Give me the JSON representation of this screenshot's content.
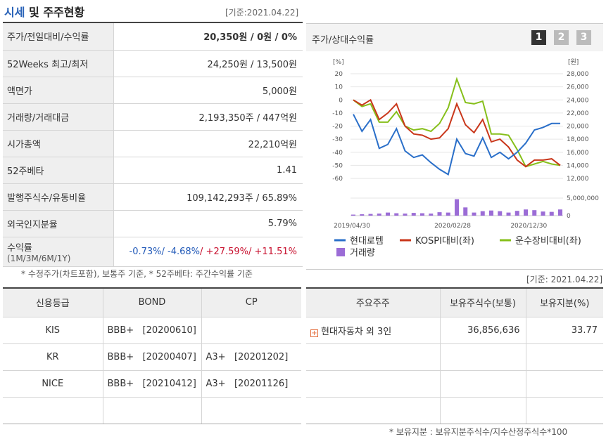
{
  "header": {
    "title_main": "시세",
    "title_rest": " 및 주주현황",
    "base_date": "[기준:2021.04.22]"
  },
  "price_table": {
    "rows": [
      {
        "label": "주가/전일대비/수익률",
        "value_a": "20,350",
        "value_b": "원 / 0원 / 0%"
      },
      {
        "label": "52Weeks 최고/최저",
        "value": "24,250원 / 13,500원"
      },
      {
        "label": "액면가",
        "value": "5,000원"
      },
      {
        "label": "거래량/거래대금",
        "value": "2,193,350주 / 447억원"
      },
      {
        "label": "시가총액",
        "value": "22,210억원"
      },
      {
        "label": "52주베타",
        "value": "1.41"
      },
      {
        "label": "발행주식수/유동비율",
        "value": "109,142,293주 / 65.89%"
      },
      {
        "label": "외국인지분율",
        "value": "5.79%"
      }
    ],
    "returns": {
      "label": "수익률",
      "sublabel": "(1M/3M/6M/1Y)",
      "r1m": "-0.73%",
      "r3m": "-4.68%",
      "r6m": "+27.59%",
      "r1y": "+11.51%"
    },
    "note": "* 수정주가(차트포함), 보통주 기준, * 52주베타: 주간수익률 기준"
  },
  "chart_panel": {
    "title": "주가/상대수익률",
    "pages": [
      "1",
      "2",
      "3"
    ],
    "left_unit": "[%]",
    "right_unit": "[원]",
    "base_date": "[기준: 2021.04.22]"
  },
  "chart_data": {
    "type": "line",
    "x_tick_labels": [
      "2019/04/30",
      "2020/02/28",
      "2020/12/30"
    ],
    "y_left": {
      "ticks": [
        20,
        10,
        0,
        -10,
        -20,
        -30,
        -40,
        -50,
        -60
      ],
      "range": [
        -60,
        20
      ]
    },
    "y_right": {
      "ticks": [
        "28,000",
        "26,000",
        "24,000",
        "22,000",
        "20,000",
        "18,000",
        "16,000",
        "14,000",
        "12,000"
      ],
      "range": [
        12000,
        28000
      ]
    },
    "volume_axis": {
      "ticks": [
        "5,000,000",
        "0"
      ],
      "max": 8000000
    },
    "series": [
      {
        "name": "현대로템",
        "color": "#2a6fc9",
        "values": [
          -11,
          -24,
          -15,
          -37,
          -34,
          -22,
          -39,
          -44,
          -42,
          -48,
          -53,
          -57,
          -30,
          -41,
          -43,
          -29,
          -44,
          -40,
          -45,
          -40,
          -33,
          -23,
          -21,
          -18,
          -18
        ]
      },
      {
        "name": "KOSPI대비(좌)",
        "color": "#c9361a",
        "values": [
          0,
          -4,
          0,
          -15,
          -10,
          -3,
          -20,
          -26,
          -27,
          -30,
          -29,
          -22,
          -3,
          -19,
          -25,
          -15,
          -32,
          -30,
          -36,
          -46,
          -51,
          -46,
          -46,
          -45,
          -50
        ]
      },
      {
        "name": "운수장비대비(좌)",
        "color": "#86bf1a",
        "values": [
          0,
          -5,
          -3,
          -17,
          -17,
          -9,
          -20,
          -23,
          -22,
          -24,
          -18,
          -6,
          16,
          -2,
          -3,
          -1,
          -26,
          -26,
          -27,
          -38,
          -51,
          -49,
          -47,
          -49,
          -50
        ]
      }
    ],
    "volume": {
      "name": "거래량",
      "color": "#9b6cd6",
      "values": [
        300000,
        400000,
        500000,
        600000,
        900000,
        700000,
        600000,
        800000,
        700000,
        600000,
        1000000,
        900000,
        4800000,
        2400000,
        900000,
        1300000,
        1500000,
        1300000,
        900000,
        1400000,
        1800000,
        1600000,
        1200000,
        1100000,
        1800000
      ]
    }
  },
  "credit_table": {
    "headers": [
      "신용등급",
      "BOND",
      "CP"
    ],
    "rows": [
      {
        "agency": "KIS",
        "bond": "BBB+   [20200610]",
        "cp": ""
      },
      {
        "agency": "KR",
        "bond": "BBB+   [20200407]",
        "cp": "A3+   [20201202]"
      },
      {
        "agency": "NICE",
        "bond": "BBB+   [20210412]",
        "cp": "A3+   [20201126]"
      }
    ]
  },
  "shareholder_table": {
    "headers": [
      "주요주주",
      "보유주식수(보통)",
      "보유지분(%)"
    ],
    "rows": [
      {
        "name": "현대자동차 외 3인",
        "shares": "36,856,636",
        "ratio": "33.77"
      }
    ],
    "note": "* 보유지분 : 보유지분주식수/지수산정주식수*100"
  }
}
